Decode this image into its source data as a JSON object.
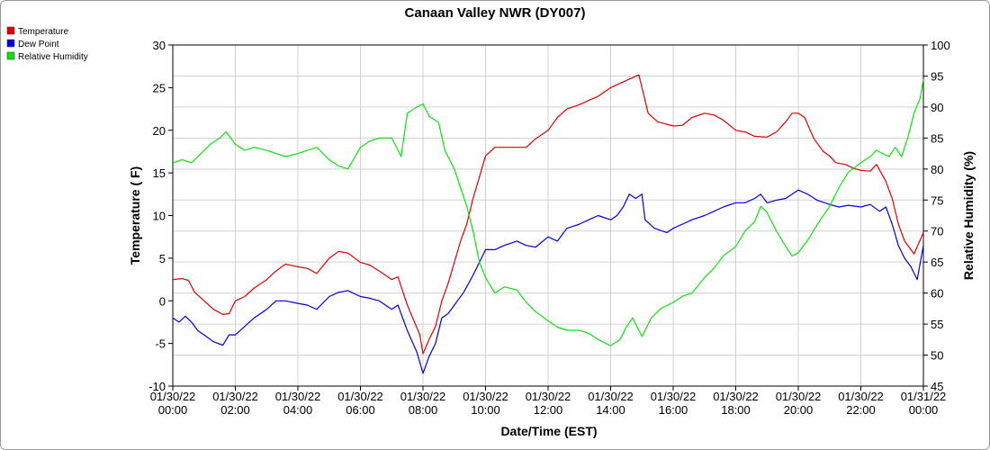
{
  "chart_data": {
    "type": "line",
    "title": "Canaan Valley NWR (DY007)",
    "xlabel": "Date/Time (EST)",
    "ylabel": "Temperature ( F)",
    "y2label": "Relative Humidity (%)",
    "ylim": [
      -10,
      30
    ],
    "y2lim": [
      45,
      100
    ],
    "xlim": [
      0,
      24
    ],
    "grid": true,
    "legend_position": "top-left",
    "x_ticks": [
      {
        "x": 0,
        "date": "01/30/22",
        "time": "00:00"
      },
      {
        "x": 2,
        "date": "01/30/22",
        "time": "02:00"
      },
      {
        "x": 4,
        "date": "01/30/22",
        "time": "04:00"
      },
      {
        "x": 6,
        "date": "01/30/22",
        "time": "06:00"
      },
      {
        "x": 8,
        "date": "01/30/22",
        "time": "08:00"
      },
      {
        "x": 10,
        "date": "01/30/22",
        "time": "10:00"
      },
      {
        "x": 12,
        "date": "01/30/22",
        "time": "12:00"
      },
      {
        "x": 14,
        "date": "01/30/22",
        "time": "14:00"
      },
      {
        "x": 16,
        "date": "01/30/22",
        "time": "16:00"
      },
      {
        "x": 18,
        "date": "01/30/22",
        "time": "18:00"
      },
      {
        "x": 20,
        "date": "01/30/22",
        "time": "20:00"
      },
      {
        "x": 22,
        "date": "01/30/22",
        "time": "22:00"
      },
      {
        "x": 24,
        "date": "01/31/22",
        "time": "00:00"
      }
    ],
    "y_ticks": [
      -10,
      -5,
      0,
      5,
      10,
      15,
      20,
      25,
      30
    ],
    "y2_ticks": [
      45,
      50,
      55,
      60,
      65,
      70,
      75,
      80,
      85,
      90,
      95,
      100
    ],
    "series": [
      {
        "name": "Temperature",
        "axis": "left",
        "color": "#e00000",
        "points": [
          [
            0,
            2.5
          ],
          [
            0.3,
            2.6
          ],
          [
            0.5,
            2.4
          ],
          [
            0.7,
            1.0
          ],
          [
            1.0,
            0.0
          ],
          [
            1.3,
            -1.0
          ],
          [
            1.6,
            -1.6
          ],
          [
            1.8,
            -1.5
          ],
          [
            2.0,
            0.0
          ],
          [
            2.3,
            0.5
          ],
          [
            2.6,
            1.5
          ],
          [
            3.0,
            2.5
          ],
          [
            3.3,
            3.5
          ],
          [
            3.6,
            4.3
          ],
          [
            4.0,
            4.0
          ],
          [
            4.3,
            3.8
          ],
          [
            4.6,
            3.2
          ],
          [
            5.0,
            5.0
          ],
          [
            5.3,
            5.8
          ],
          [
            5.6,
            5.6
          ],
          [
            6.0,
            4.5
          ],
          [
            6.3,
            4.2
          ],
          [
            6.6,
            3.5
          ],
          [
            7.0,
            2.5
          ],
          [
            7.2,
            2.8
          ],
          [
            7.5,
            -0.5
          ],
          [
            7.9,
            -4.0
          ],
          [
            8.0,
            -6.2
          ],
          [
            8.2,
            -4.5
          ],
          [
            8.4,
            -3.0
          ],
          [
            8.6,
            0.0
          ],
          [
            8.8,
            2.0
          ],
          [
            9.0,
            4.5
          ],
          [
            9.2,
            7.0
          ],
          [
            9.4,
            9.0
          ],
          [
            9.6,
            12.0
          ],
          [
            9.8,
            14.5
          ],
          [
            10.0,
            17.0
          ],
          [
            10.3,
            18.0
          ],
          [
            10.7,
            18.0
          ],
          [
            11.3,
            18.0
          ],
          [
            11.6,
            19.0
          ],
          [
            12.0,
            20.0
          ],
          [
            12.3,
            21.5
          ],
          [
            12.6,
            22.5
          ],
          [
            13.0,
            23.0
          ],
          [
            13.3,
            23.5
          ],
          [
            13.6,
            24.0
          ],
          [
            14.0,
            25.0
          ],
          [
            14.3,
            25.5
          ],
          [
            14.6,
            26.0
          ],
          [
            14.9,
            26.5
          ],
          [
            15.0,
            25.0
          ],
          [
            15.2,
            22.0
          ],
          [
            15.5,
            21.0
          ],
          [
            16.0,
            20.5
          ],
          [
            16.3,
            20.6
          ],
          [
            16.6,
            21.5
          ],
          [
            17.0,
            22.0
          ],
          [
            17.3,
            21.8
          ],
          [
            17.6,
            21.2
          ],
          [
            18.0,
            20.0
          ],
          [
            18.3,
            19.8
          ],
          [
            18.6,
            19.3
          ],
          [
            19.0,
            19.2
          ],
          [
            19.3,
            19.8
          ],
          [
            19.6,
            21.0
          ],
          [
            19.8,
            22.0
          ],
          [
            20.0,
            22.0
          ],
          [
            20.2,
            21.5
          ],
          [
            20.5,
            19.0
          ],
          [
            20.8,
            17.5
          ],
          [
            21.0,
            17.0
          ],
          [
            21.2,
            16.2
          ],
          [
            21.5,
            16.0
          ],
          [
            21.8,
            15.5
          ],
          [
            22.0,
            15.3
          ],
          [
            22.3,
            15.2
          ],
          [
            22.5,
            16.0
          ],
          [
            22.8,
            14.0
          ],
          [
            23.0,
            12.0
          ],
          [
            23.2,
            9.0
          ],
          [
            23.4,
            7.0
          ],
          [
            23.7,
            5.5
          ],
          [
            24.0,
            8.0
          ]
        ]
      },
      {
        "name": "Dew Point",
        "axis": "left",
        "color": "#0000e0",
        "points": [
          [
            0,
            -2.0
          ],
          [
            0.2,
            -2.5
          ],
          [
            0.4,
            -1.8
          ],
          [
            0.6,
            -2.5
          ],
          [
            0.8,
            -3.5
          ],
          [
            1.0,
            -4.0
          ],
          [
            1.3,
            -4.8
          ],
          [
            1.6,
            -5.2
          ],
          [
            1.8,
            -4.0
          ],
          [
            2.0,
            -4.0
          ],
          [
            2.3,
            -3.0
          ],
          [
            2.6,
            -2.0
          ],
          [
            3.0,
            -1.0
          ],
          [
            3.3,
            0.0
          ],
          [
            3.6,
            0.0
          ],
          [
            4.0,
            -0.3
          ],
          [
            4.3,
            -0.5
          ],
          [
            4.6,
            -1.0
          ],
          [
            5.0,
            0.5
          ],
          [
            5.3,
            1.0
          ],
          [
            5.6,
            1.2
          ],
          [
            6.0,
            0.5
          ],
          [
            6.3,
            0.3
          ],
          [
            6.6,
            0.0
          ],
          [
            7.0,
            -1.0
          ],
          [
            7.2,
            -0.5
          ],
          [
            7.5,
            -3.5
          ],
          [
            7.8,
            -6.0
          ],
          [
            8.0,
            -8.5
          ],
          [
            8.2,
            -6.5
          ],
          [
            8.4,
            -5.0
          ],
          [
            8.6,
            -2.0
          ],
          [
            8.8,
            -1.5
          ],
          [
            9.0,
            -0.5
          ],
          [
            9.3,
            1.0
          ],
          [
            9.6,
            3.0
          ],
          [
            9.8,
            4.5
          ],
          [
            10.0,
            6.0
          ],
          [
            10.3,
            6.0
          ],
          [
            10.6,
            6.5
          ],
          [
            11.0,
            7.0
          ],
          [
            11.3,
            6.5
          ],
          [
            11.6,
            6.3
          ],
          [
            12.0,
            7.5
          ],
          [
            12.3,
            7.0
          ],
          [
            12.6,
            8.5
          ],
          [
            13.0,
            9.0
          ],
          [
            13.3,
            9.5
          ],
          [
            13.6,
            10.0
          ],
          [
            14.0,
            9.5
          ],
          [
            14.2,
            10.0
          ],
          [
            14.4,
            11.0
          ],
          [
            14.6,
            12.5
          ],
          [
            14.8,
            12.0
          ],
          [
            15.0,
            12.5
          ],
          [
            15.1,
            9.5
          ],
          [
            15.4,
            8.5
          ],
          [
            15.8,
            8.0
          ],
          [
            16.0,
            8.5
          ],
          [
            16.3,
            9.0
          ],
          [
            16.6,
            9.5
          ],
          [
            17.0,
            10.0
          ],
          [
            17.3,
            10.5
          ],
          [
            17.6,
            11.0
          ],
          [
            18.0,
            11.5
          ],
          [
            18.3,
            11.5
          ],
          [
            18.6,
            12.0
          ],
          [
            18.8,
            12.5
          ],
          [
            19.0,
            11.5
          ],
          [
            19.3,
            11.8
          ],
          [
            19.6,
            12.0
          ],
          [
            19.8,
            12.5
          ],
          [
            20.0,
            13.0
          ],
          [
            20.3,
            12.5
          ],
          [
            20.6,
            11.8
          ],
          [
            21.0,
            11.3
          ],
          [
            21.3,
            11.0
          ],
          [
            21.6,
            11.2
          ],
          [
            22.0,
            11.0
          ],
          [
            22.3,
            11.3
          ],
          [
            22.6,
            10.5
          ],
          [
            22.8,
            11.0
          ],
          [
            23.0,
            9.0
          ],
          [
            23.2,
            6.5
          ],
          [
            23.4,
            5.0
          ],
          [
            23.6,
            4.0
          ],
          [
            23.8,
            2.5
          ],
          [
            24.0,
            6.5
          ]
        ]
      },
      {
        "name": "Relative Humidity",
        "axis": "right",
        "color": "#10e010",
        "points": [
          [
            0,
            81.0
          ],
          [
            0.3,
            81.5
          ],
          [
            0.6,
            81.0
          ],
          [
            0.9,
            82.5
          ],
          [
            1.2,
            84.0
          ],
          [
            1.5,
            85.0
          ],
          [
            1.7,
            86.0
          ],
          [
            2.0,
            84.0
          ],
          [
            2.3,
            83.0
          ],
          [
            2.6,
            83.5
          ],
          [
            3.0,
            83.0
          ],
          [
            3.3,
            82.5
          ],
          [
            3.6,
            82.0
          ],
          [
            4.0,
            82.5
          ],
          [
            4.3,
            83.0
          ],
          [
            4.6,
            83.5
          ],
          [
            5.0,
            81.5
          ],
          [
            5.3,
            80.5
          ],
          [
            5.6,
            80.0
          ],
          [
            6.0,
            83.5
          ],
          [
            6.3,
            84.5
          ],
          [
            6.6,
            85.0
          ],
          [
            7.0,
            85.0
          ],
          [
            7.3,
            82.0
          ],
          [
            7.5,
            89.0
          ],
          [
            7.8,
            90.0
          ],
          [
            8.0,
            90.5
          ],
          [
            8.2,
            88.5
          ],
          [
            8.5,
            87.5
          ],
          [
            8.7,
            83.0
          ],
          [
            9.0,
            80.0
          ],
          [
            9.2,
            77.0
          ],
          [
            9.4,
            74.0
          ],
          [
            9.6,
            70.0
          ],
          [
            9.8,
            65.0
          ],
          [
            10.0,
            62.5
          ],
          [
            10.3,
            60.0
          ],
          [
            10.6,
            61.0
          ],
          [
            11.0,
            60.5
          ],
          [
            11.3,
            58.5
          ],
          [
            11.6,
            57.0
          ],
          [
            12.0,
            55.5
          ],
          [
            12.3,
            54.5
          ],
          [
            12.6,
            54.0
          ],
          [
            13.0,
            54.0
          ],
          [
            13.3,
            53.5
          ],
          [
            13.6,
            52.5
          ],
          [
            14.0,
            51.5
          ],
          [
            14.3,
            52.5
          ],
          [
            14.5,
            54.5
          ],
          [
            14.7,
            56.0
          ],
          [
            15.0,
            53.0
          ],
          [
            15.3,
            56.0
          ],
          [
            15.6,
            57.5
          ],
          [
            16.0,
            58.5
          ],
          [
            16.3,
            59.5
          ],
          [
            16.6,
            60.0
          ],
          [
            17.0,
            62.5
          ],
          [
            17.3,
            64.0
          ],
          [
            17.6,
            66.0
          ],
          [
            18.0,
            67.5
          ],
          [
            18.3,
            70.0
          ],
          [
            18.6,
            71.5
          ],
          [
            18.8,
            74.0
          ],
          [
            19.0,
            73.0
          ],
          [
            19.3,
            70.0
          ],
          [
            19.6,
            67.5
          ],
          [
            19.8,
            66.0
          ],
          [
            20.0,
            66.5
          ],
          [
            20.3,
            68.5
          ],
          [
            20.6,
            71.0
          ],
          [
            21.0,
            74.0
          ],
          [
            21.3,
            77.0
          ],
          [
            21.6,
            79.5
          ],
          [
            22.0,
            81.0
          ],
          [
            22.3,
            82.0
          ],
          [
            22.5,
            83.0
          ],
          [
            22.7,
            82.5
          ],
          [
            22.9,
            82.0
          ],
          [
            23.1,
            83.5
          ],
          [
            23.3,
            82.0
          ],
          [
            23.5,
            85.0
          ],
          [
            23.7,
            89.0
          ],
          [
            23.9,
            91.5
          ],
          [
            24.0,
            94.5
          ]
        ]
      }
    ]
  }
}
